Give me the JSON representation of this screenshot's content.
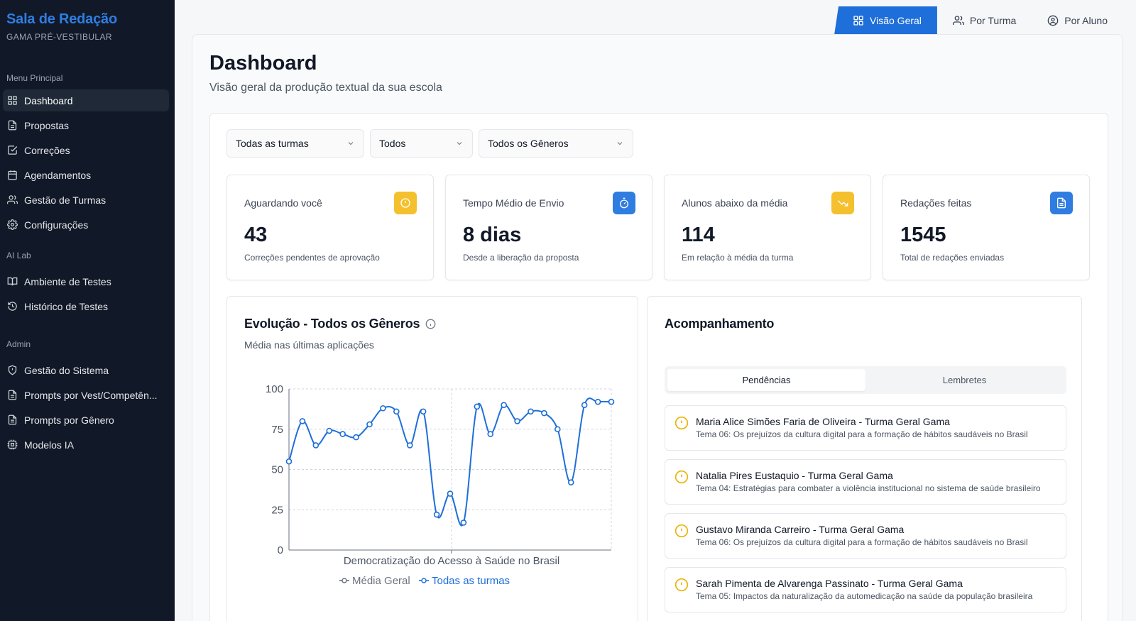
{
  "brand": {
    "title": "Sala de Redação",
    "subtitle": "GAMA PRÉ-VESTIBULAR"
  },
  "sidebar": {
    "sections": [
      {
        "label": "Menu Principal",
        "items": [
          {
            "label": "Dashboard",
            "icon": "grid-icon",
            "active": true
          },
          {
            "label": "Propostas",
            "icon": "file-icon"
          },
          {
            "label": "Correções",
            "icon": "check-square-icon"
          },
          {
            "label": "Agendamentos",
            "icon": "calendar-icon"
          },
          {
            "label": "Gestão de Turmas",
            "icon": "users-icon"
          },
          {
            "label": "Configurações",
            "icon": "gear-icon"
          }
        ]
      },
      {
        "label": "AI Lab",
        "items": [
          {
            "label": "Ambiente de Testes",
            "icon": "book-icon"
          },
          {
            "label": "Histórico de Testes",
            "icon": "history-icon"
          }
        ]
      },
      {
        "label": "Admin",
        "items": [
          {
            "label": "Gestão do Sistema",
            "icon": "shield-icon"
          },
          {
            "label": "Prompts por Vest/Competên...",
            "icon": "file-icon"
          },
          {
            "label": "Prompts por Gênero",
            "icon": "file-icon"
          },
          {
            "label": "Modelos IA",
            "icon": "cpu-icon"
          }
        ]
      }
    ]
  },
  "top_tabs": [
    {
      "label": "Visão Geral",
      "icon": "grid-icon",
      "active": true
    },
    {
      "label": "Por Turma",
      "icon": "users-icon"
    },
    {
      "label": "Por Aluno",
      "icon": "user-circle-icon"
    }
  ],
  "header": {
    "title": "Dashboard",
    "subtitle": "Visão geral da produção textual da sua escola"
  },
  "filters": {
    "turma": "Todas as turmas",
    "periodo": "Todos",
    "genero": "Todos os Gêneros"
  },
  "stats": [
    {
      "title": "Aguardando você",
      "value": "43",
      "desc": "Correções pendentes de aprovação",
      "icon": "alert-circle-icon",
      "color": "#f5c02e"
    },
    {
      "title": "Tempo Médio de Envio",
      "value": "8 dias",
      "desc": "Desde a liberação da proposta",
      "icon": "timer-icon",
      "color": "#2f7de1"
    },
    {
      "title": "Alunos abaixo da média",
      "value": "114",
      "desc": "Em relação à média da turma",
      "icon": "trending-down-icon",
      "color": "#f5c02e"
    },
    {
      "title": "Redações feitas",
      "value": "1545",
      "desc": "Total de redações enviadas",
      "icon": "file-text-icon",
      "color": "#2f7de1"
    }
  ],
  "chart": {
    "title": "Evolução - Todos os Gêneros",
    "subtitle": "Média nas últimas aplicações",
    "xlabel_tick": "Democratização do Acesso à Saúde no Brasil"
  },
  "chart_data": {
    "type": "line",
    "ylim": [
      0,
      100
    ],
    "yticks": [
      0,
      25,
      50,
      75,
      100
    ],
    "x_tick_labels": [
      "Democratização do Acesso à Saúde no Brasil"
    ],
    "grid": true,
    "legend_position": "bottom",
    "series": [
      {
        "name": "Média Geral",
        "color": "#6b7280",
        "values": []
      },
      {
        "name": "Todas as turmas",
        "color": "#1e6fd9",
        "values": [
          55,
          80,
          65,
          74,
          72,
          70,
          78,
          88,
          86,
          65,
          86,
          22,
          35,
          17,
          89,
          72,
          90,
          80,
          86,
          85,
          75,
          42,
          90,
          92,
          92
        ]
      }
    ]
  },
  "follow": {
    "title": "Acompanhamento",
    "tabs": [
      {
        "label": "Pendências",
        "active": true
      },
      {
        "label": "Lembretes"
      }
    ],
    "items": [
      {
        "name": "Maria Alice Simões Faria de Oliveira - Turma Geral Gama",
        "theme": "Tema 06: Os prejuízos da cultura digital para a formação de hábitos saudáveis no Brasil"
      },
      {
        "name": "Natalia Pires Eustaquio - Turma Geral Gama",
        "theme": "Tema 04: Estratégias para combater a violência institucional no sistema de saúde brasileiro"
      },
      {
        "name": "Gustavo Miranda Carreiro - Turma Geral Gama",
        "theme": "Tema 06: Os prejuízos da cultura digital para a formação de hábitos saudáveis no Brasil"
      },
      {
        "name": "Sarah Pimenta de Alvarenga Passinato - Turma Geral Gama",
        "theme": "Tema 05: Impactos da naturalização da automedicação na saúde da população brasileira"
      }
    ]
  }
}
